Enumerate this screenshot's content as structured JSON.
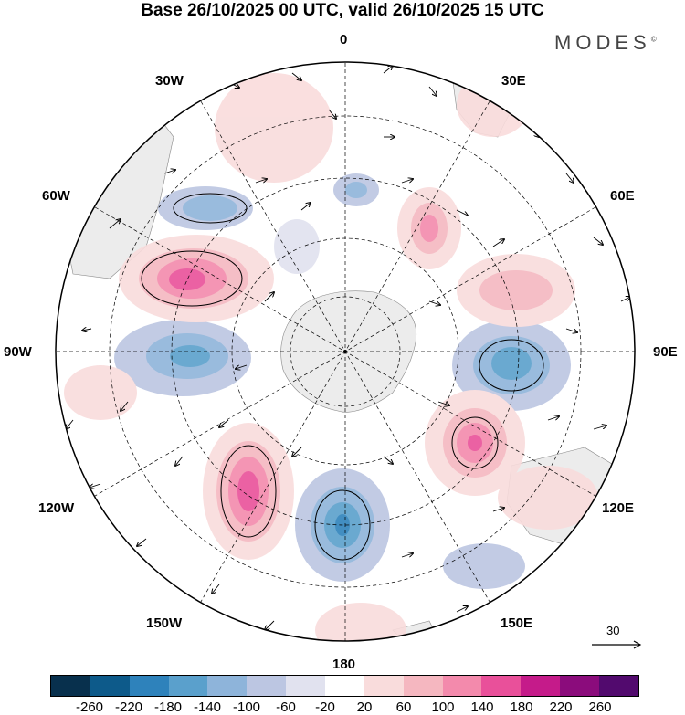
{
  "header": {
    "title": "Base 26/10/2025 00 UTC, valid 26/10/2025 15 UTC",
    "brand": "MODES",
    "brand_mark": "©"
  },
  "map": {
    "projection": "south polar stereographic",
    "longitude_labels": {
      "lon_0": "0",
      "lon_30e": "30E",
      "lon_60e": "60E",
      "lon_90e": "90E",
      "lon_120e": "120E",
      "lon_150e": "150E",
      "lon_180": "180",
      "lon_150w": "150W",
      "lon_120w": "120W",
      "lon_90w": "90W",
      "lon_60w": "60W",
      "lon_30w": "30W"
    },
    "vector_reference": {
      "value": "30"
    }
  },
  "colorbar": {
    "colors": [
      "#08304d",
      "#0d5a8a",
      "#2e82bb",
      "#5aa0cc",
      "#8eb4da",
      "#bcc6e2",
      "#e1e2ef",
      "#ffffff",
      "#f9dcdc",
      "#f5b7c0",
      "#f38aac",
      "#e9509a",
      "#c51b8a",
      "#8b0c7c",
      "#520a6e"
    ],
    "ticks": [
      "-260",
      "-220",
      "-180",
      "-140",
      "-100",
      "-60",
      "-20",
      "20",
      "60",
      "100",
      "140",
      "180",
      "220",
      "260"
    ]
  }
}
